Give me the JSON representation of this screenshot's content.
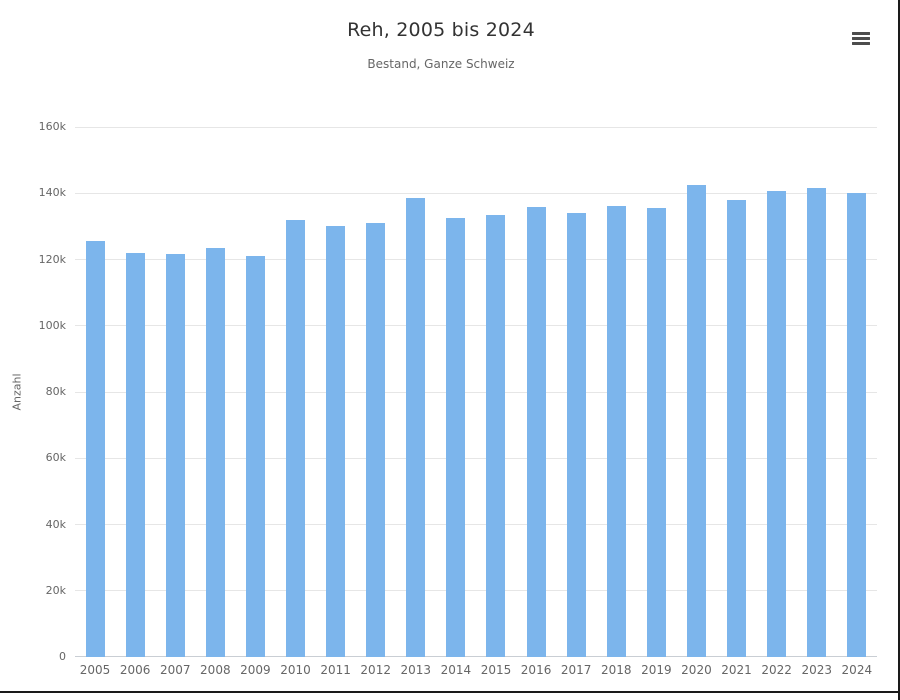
{
  "chart": {
    "title": "Reh, 2005 bis 2024",
    "subtitle": "Bestand, Ganze Schweiz",
    "y_axis": {
      "title": "Anzahl",
      "tick_labels": [
        "0",
        "20k",
        "40k",
        "60k",
        "80k",
        "100k",
        "120k",
        "140k",
        "160k"
      ]
    },
    "colors": {
      "bar": "#7cb5ec",
      "gridline": "#e6e6e6",
      "axis_line": "#c9ced4",
      "title_text": "#333333",
      "muted_text": "#666666",
      "frame_line": "#1a1a1a",
      "menu_icon": "#4d4d4d"
    },
    "context_menu_icon": "hamburger-icon"
  },
  "chart_data": {
    "type": "bar",
    "title": "Reh, 2005 bis 2024",
    "subtitle": "Bestand, Ganze Schweiz",
    "xlabel": "",
    "ylabel": "Anzahl",
    "ylim": [
      0,
      160000
    ],
    "grid": true,
    "legend": false,
    "categories": [
      "2005",
      "2006",
      "2007",
      "2008",
      "2009",
      "2010",
      "2011",
      "2012",
      "2013",
      "2014",
      "2015",
      "2016",
      "2017",
      "2018",
      "2019",
      "2020",
      "2021",
      "2022",
      "2023",
      "2024"
    ],
    "values": [
      125500,
      122000,
      121600,
      123600,
      121200,
      131800,
      130200,
      131000,
      138700,
      132600,
      133300,
      136000,
      133900,
      136200,
      135500,
      142400,
      138100,
      140800,
      141600,
      140100
    ]
  }
}
